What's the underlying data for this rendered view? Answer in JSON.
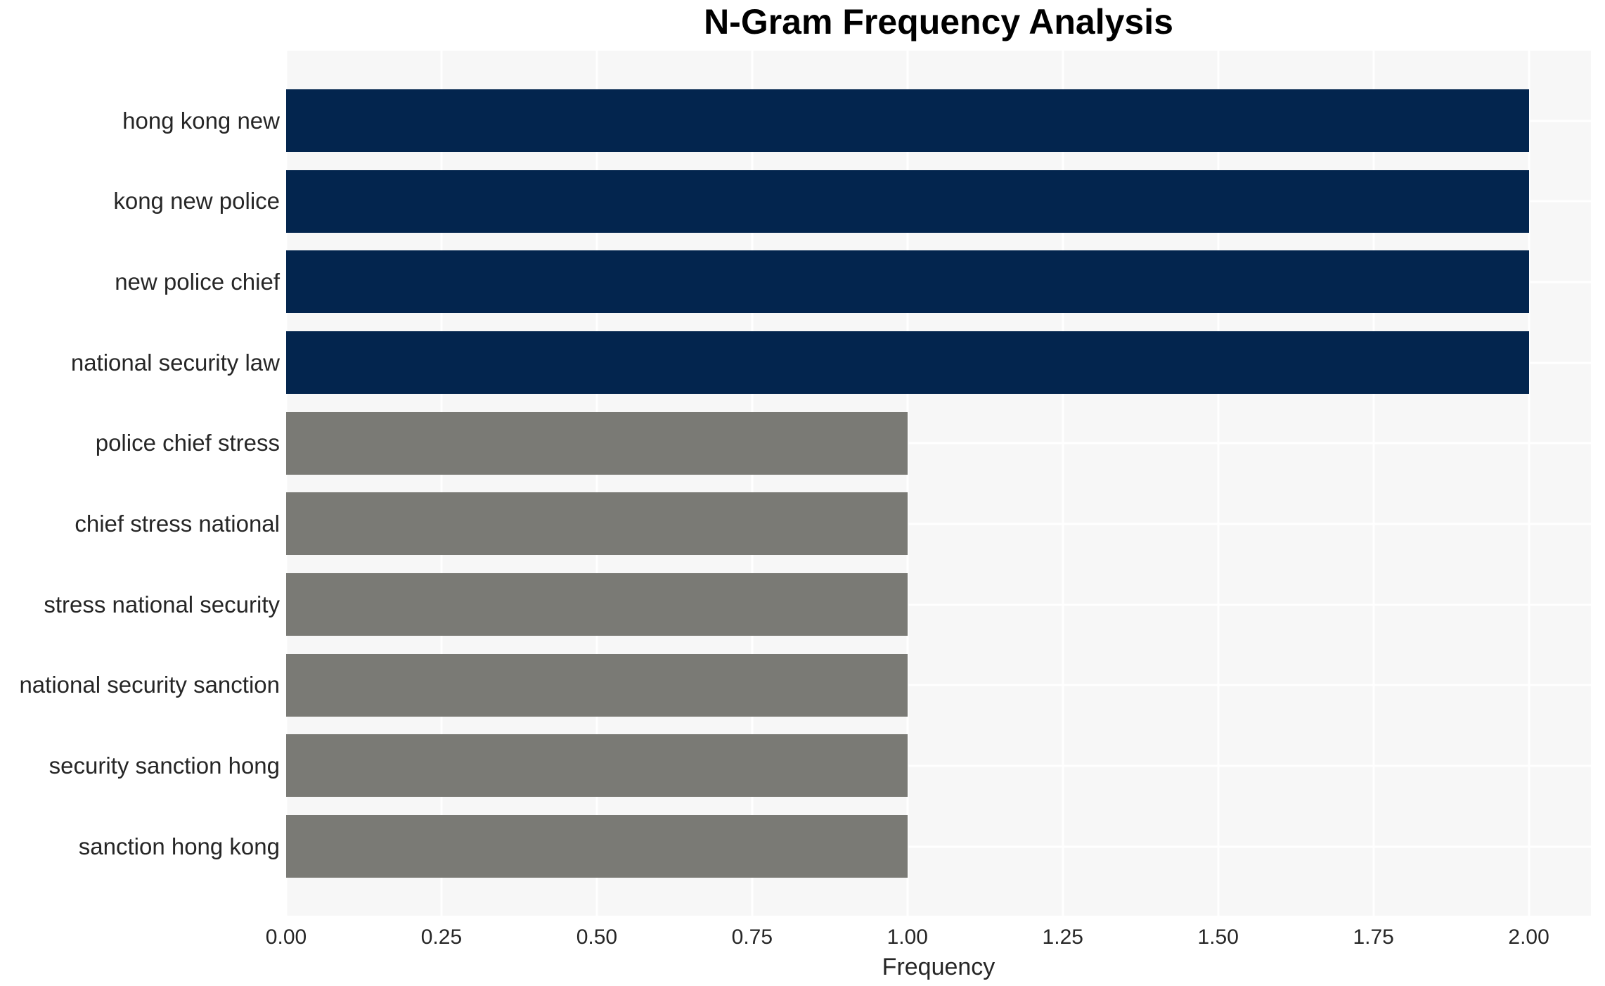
{
  "title": "N-Gram Frequency Analysis",
  "chart_data": {
    "type": "bar",
    "orientation": "horizontal",
    "title": "N-Gram Frequency Analysis",
    "xlabel": "Frequency",
    "ylabel": "",
    "categories": [
      "hong kong new",
      "kong new police",
      "new police chief",
      "national security law",
      "police chief stress",
      "chief stress national",
      "stress national security",
      "national security sanction",
      "security sanction hong",
      "sanction hong kong"
    ],
    "values": [
      2,
      2,
      2,
      2,
      1,
      1,
      1,
      1,
      1,
      1
    ],
    "bar_colors": [
      "#03254E",
      "#03254E",
      "#03254E",
      "#03254E",
      "#7A7A75",
      "#7A7A75",
      "#7A7A75",
      "#7A7A75",
      "#7A7A75",
      "#7A7A75"
    ],
    "xlim": [
      0,
      2.1
    ],
    "xticks": [
      0,
      0.25,
      0.5,
      0.75,
      1.0,
      1.25,
      1.5,
      1.75,
      2.0
    ],
    "xtick_labels": [
      "0.00",
      "0.25",
      "0.50",
      "0.75",
      "1.00",
      "1.25",
      "1.50",
      "1.75",
      "2.00"
    ],
    "grid": true,
    "gridline_color": "#FFFFFF",
    "plot_background": "#F7F7F7",
    "page_background": "#FFFFFF",
    "high_frequency_color": "#03254E",
    "low_frequency_color": "#7A7A75",
    "title_color": "#000000",
    "label_color": "#262626",
    "legend": false
  }
}
